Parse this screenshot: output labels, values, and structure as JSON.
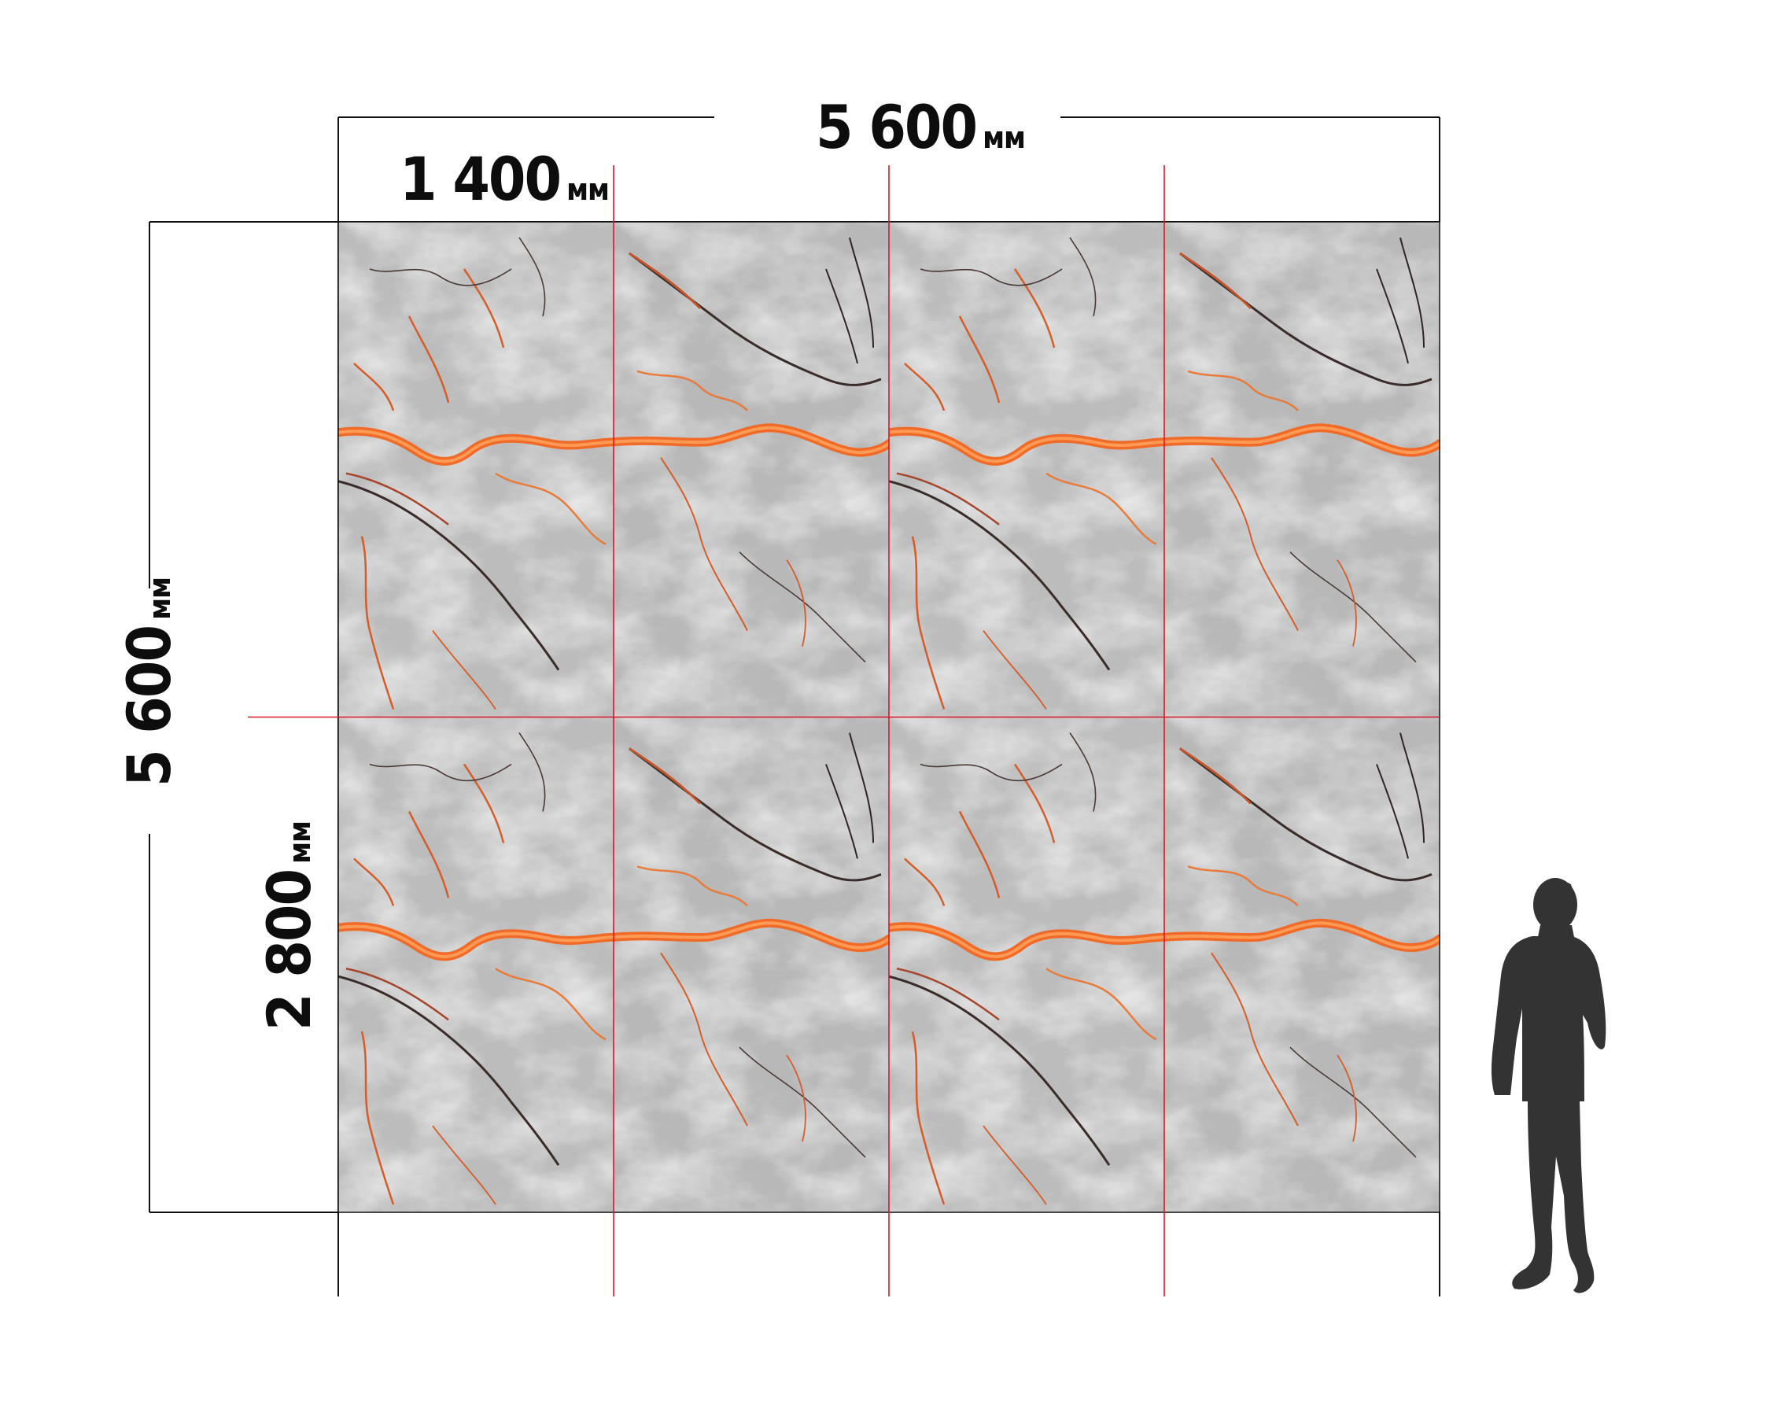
{
  "dimensions": {
    "total_width": {
      "value": "5 600",
      "unit": "мм"
    },
    "panel_width": {
      "value": "1 400",
      "unit": "мм"
    },
    "total_height": {
      "value": "5 600",
      "unit": "мм"
    },
    "panel_height": {
      "value": "2 800",
      "unit": "мм"
    }
  },
  "layout": {
    "columns": 4,
    "rows": 2
  },
  "colors": {
    "seam_line": "#d8182a",
    "dimension_line": "#111111",
    "marble_base": "#bdbdbd",
    "marble_light": "#ececec",
    "vein_orange": "#f06a28",
    "vein_dark": "#3a2c28",
    "silhouette": "#333333"
  },
  "icons": [
    "person-silhouette-icon"
  ]
}
